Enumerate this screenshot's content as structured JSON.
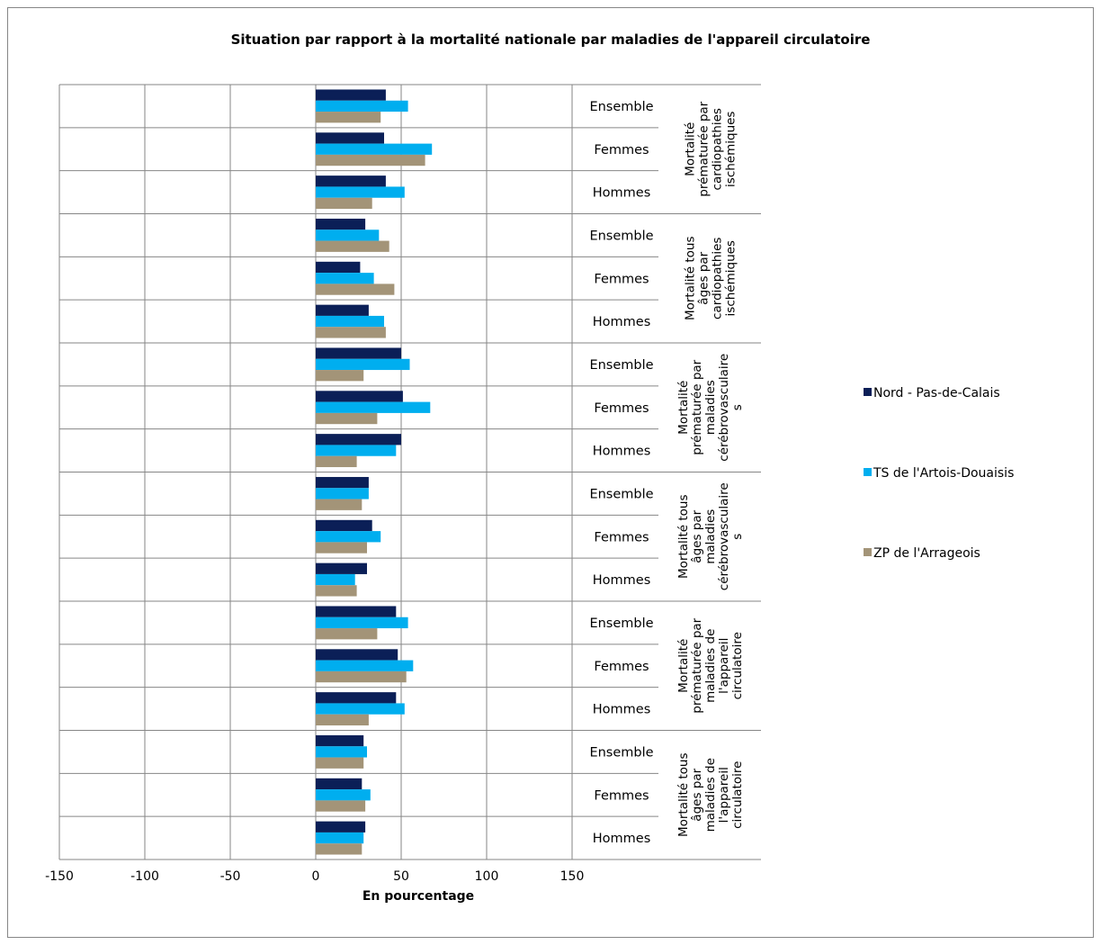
{
  "chart_data": {
    "type": "bar",
    "orientation": "horizontal",
    "title": "Situation par rapport à la mortalité nationale par maladies de l'appareil circulatoire",
    "xlabel": "En pourcentage",
    "xlim": [
      -150,
      150
    ],
    "xticks": [
      "-150",
      "-100",
      "-50",
      "0",
      "50",
      "100",
      "150"
    ],
    "grid": true,
    "legend_position": "right",
    "colors": {
      "Nord - Pas-de-Calais": "#0b1f57",
      "TS de l'Artois-Douaisis": "#00aeef",
      "ZP de l'Arrageois": "#a39478"
    },
    "groups": [
      {
        "label": "Mortalité prématurée par cardiopathies ischémiques",
        "lines": [
          "Mortalité",
          "prématurée par",
          "cardiopathies",
          "ischémiques"
        ]
      },
      {
        "label": "Mortalité tous âges par cardiopathies ischémiques",
        "lines": [
          "Mortalité tous",
          "âges par",
          "cardiopathies",
          "ischémiques"
        ]
      },
      {
        "label": "Mortalité prématurée par maladies cérébrovasculaires",
        "lines": [
          "Mortalité",
          "prématurée par",
          "maladies",
          "cérébrovasculaire",
          "s"
        ]
      },
      {
        "label": "Mortalité tous âges par maladies cérébrovasculaires",
        "lines": [
          "Mortalité tous",
          "âges par",
          "maladies",
          "cérébrovasculaire",
          "s"
        ]
      },
      {
        "label": "Mortalité prématurée par maladies de l'appareil circulatoire",
        "lines": [
          "Mortalité",
          "prématurée par",
          "maladies de",
          "l'appareil",
          "circulatoire"
        ]
      },
      {
        "label": "Mortalité tous âges par maladies de l'appareil circulatoire",
        "lines": [
          "Mortalité tous",
          "âges par",
          "maladies de",
          "l'appareil",
          "circulatoire"
        ]
      }
    ],
    "subcategories": [
      "Ensemble",
      "Femmes",
      "Hommes"
    ],
    "series": [
      {
        "name": "Nord - Pas-de-Calais",
        "values": [
          41,
          40,
          41,
          29,
          26,
          31,
          50,
          51,
          50,
          31,
          33,
          30,
          47,
          48,
          47,
          28,
          27,
          29
        ]
      },
      {
        "name": "TS de l'Artois-Douaisis",
        "values": [
          54,
          68,
          52,
          37,
          34,
          40,
          55,
          67,
          47,
          31,
          38,
          23,
          54,
          57,
          52,
          30,
          32,
          28
        ]
      },
      {
        "name": "ZP de l'Arrageois",
        "values": [
          38,
          64,
          33,
          43,
          46,
          41,
          28,
          36,
          24,
          27,
          30,
          24,
          36,
          53,
          31,
          28,
          29,
          27
        ]
      }
    ]
  }
}
